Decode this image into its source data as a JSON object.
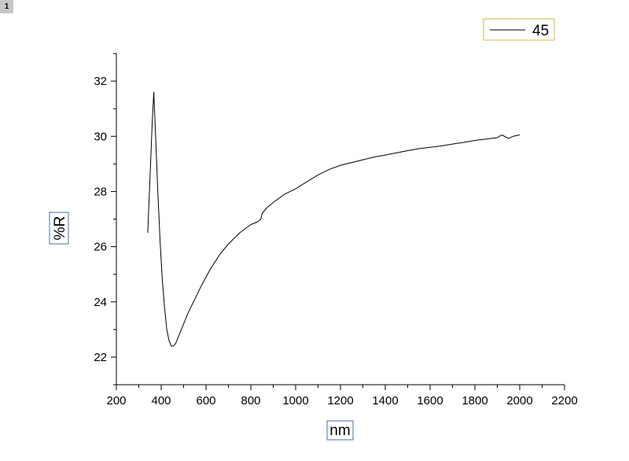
{
  "layer_badge": "1",
  "chart_data": {
    "type": "line",
    "title": "",
    "xlabel": "nm",
    "ylabel": "%R",
    "xlim": [
      200,
      2200
    ],
    "ylim": [
      21,
      33
    ],
    "x_ticks": [
      200,
      400,
      600,
      800,
      1000,
      1200,
      1400,
      1600,
      1800,
      2000,
      2200
    ],
    "y_ticks": [
      22,
      24,
      26,
      28,
      30,
      32
    ],
    "x_tick_labels": [
      "200",
      "400",
      "600",
      "800",
      "1000",
      "1200",
      "1400",
      "1600",
      "1800",
      "2000",
      "2200"
    ],
    "y_tick_labels": [
      "22",
      "24",
      "26",
      "28",
      "30",
      "32"
    ],
    "legend_position": "top-right",
    "grid": false,
    "series": [
      {
        "name": "45",
        "color": "#000000",
        "x": [
          340,
          350,
          360,
          367,
          375,
          385,
          395,
          405,
          415,
          425,
          435,
          445,
          455,
          465,
          480,
          500,
          520,
          550,
          580,
          620,
          660,
          700,
          750,
          800,
          830,
          845,
          850,
          870,
          900,
          950,
          1000,
          1050,
          1100,
          1150,
          1200,
          1250,
          1300,
          1350,
          1400,
          1450,
          1500,
          1550,
          1600,
          1650,
          1700,
          1750,
          1800,
          1850,
          1900,
          1920,
          1950,
          1970,
          2000
        ],
        "y": [
          26.5,
          28.5,
          30.5,
          31.6,
          30.0,
          28.0,
          26.2,
          24.8,
          23.8,
          23.0,
          22.6,
          22.4,
          22.4,
          22.5,
          22.8,
          23.2,
          23.6,
          24.1,
          24.6,
          25.2,
          25.7,
          26.1,
          26.5,
          26.8,
          26.9,
          27.0,
          27.2,
          27.4,
          27.6,
          27.9,
          28.1,
          28.35,
          28.6,
          28.8,
          28.95,
          29.05,
          29.15,
          29.25,
          29.32,
          29.4,
          29.48,
          29.55,
          29.6,
          29.65,
          29.72,
          29.78,
          29.85,
          29.9,
          29.95,
          30.05,
          29.92,
          30.0,
          30.05
        ]
      }
    ]
  }
}
